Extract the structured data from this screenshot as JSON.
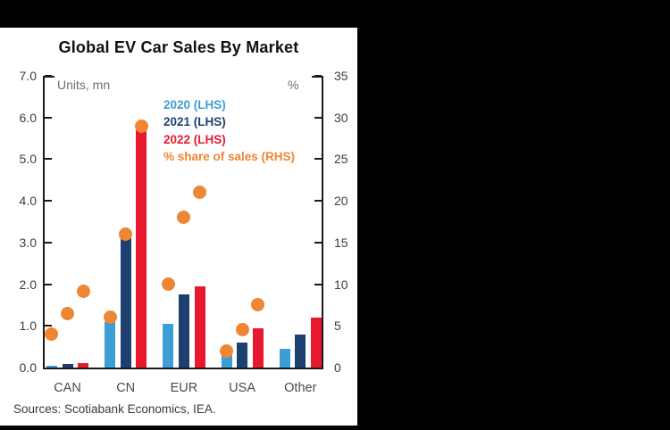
{
  "colors": {
    "background": "#000000",
    "panel": "#ffffff",
    "axis": "#1a1a1a",
    "series_2020": "#3D9DD6",
    "series_2021": "#1E4071",
    "series_2022": "#E8192F",
    "series_share": "#EF8633"
  },
  "chart_data": {
    "type": "bar",
    "title": "Global EV Car Sales By Market",
    "categories": [
      "CAN",
      "CN",
      "EUR",
      "USA",
      "Other"
    ],
    "left_axis": {
      "label": "Units, mn",
      "min": 0,
      "max": 7,
      "step": 1,
      "tick_labels": [
        "0.0",
        "1.0",
        "2.0",
        "3.0",
        "4.0",
        "5.0",
        "6.0",
        "7.0"
      ]
    },
    "right_axis": {
      "label": "%",
      "min": 0,
      "max": 35,
      "step": 5,
      "tick_labels": [
        "0",
        "5",
        "10",
        "15",
        "20",
        "25",
        "30",
        "35"
      ]
    },
    "bar_series": [
      {
        "name": "2020 (LHS)",
        "axis": "left",
        "color": "#3D9DD6",
        "values": [
          0.05,
          1.1,
          1.05,
          0.3,
          0.45
        ]
      },
      {
        "name": "2021 (LHS)",
        "axis": "left",
        "color": "#1E4071",
        "values": [
          0.08,
          3.1,
          1.75,
          0.6,
          0.8
        ]
      },
      {
        "name": "2022 (LHS)",
        "axis": "left",
        "color": "#E8192F",
        "values": [
          0.1,
          5.8,
          1.95,
          0.95,
          1.2
        ]
      }
    ],
    "dot_series": {
      "name": "% share of sales (RHS)",
      "axis": "right",
      "color": "#EF8633",
      "values_by_category": [
        {
          "category": "CAN",
          "shares": [
            4,
            6.5,
            9.2
          ]
        },
        {
          "category": "CN",
          "shares": [
            6,
            16,
            29
          ]
        },
        {
          "category": "EUR",
          "shares": [
            10,
            18,
            21
          ]
        },
        {
          "category": "USA",
          "shares": [
            2,
            4.5,
            7.5
          ]
        },
        {
          "category": "Other",
          "shares": [
            null,
            null,
            null
          ]
        }
      ]
    },
    "legend_position": "inside-top-center",
    "grid": false
  },
  "footer": {
    "sources": "Sources: Scotiabank Economics, IEA."
  }
}
